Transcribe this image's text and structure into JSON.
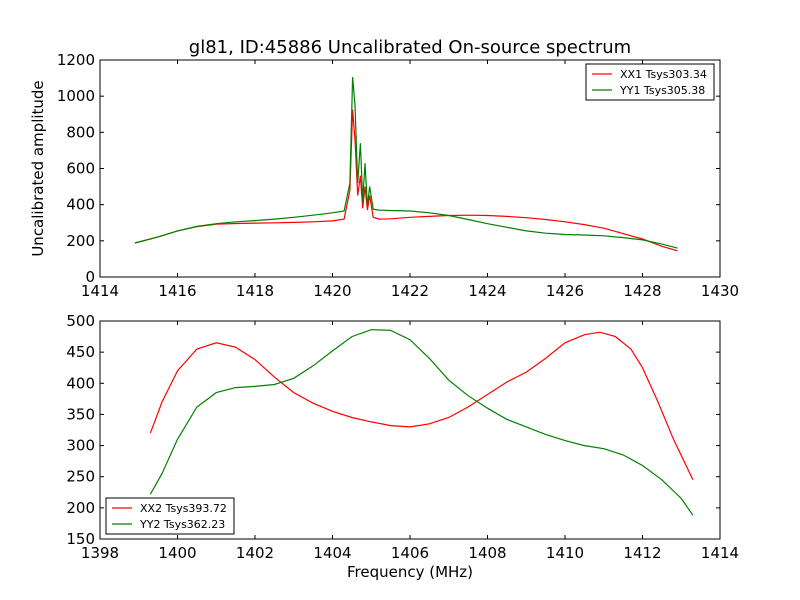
{
  "figure": {
    "title": "gl81, ID:45886 Uncalibrated On-source spectrum"
  },
  "chart_data": [
    {
      "type": "line",
      "ylabel": "Uncalibrated amplitude",
      "xlabel": "",
      "xlim": [
        1414,
        1430
      ],
      "ylim": [
        0,
        1200
      ],
      "xticks": [
        1414,
        1416,
        1418,
        1420,
        1422,
        1424,
        1426,
        1428,
        1430
      ],
      "yticks": [
        0,
        200,
        400,
        600,
        800,
        1000,
        1200
      ],
      "legend": "top-right",
      "series": [
        {
          "name": "XX1 Tsys303.34",
          "color": "#ff0000",
          "x": [
            1414.9,
            1415.5,
            1416.0,
            1416.5,
            1417.0,
            1417.5,
            1418.0,
            1418.5,
            1419.0,
            1419.5,
            1420.0,
            1420.3,
            1420.45,
            1420.52,
            1420.58,
            1420.65,
            1420.72,
            1420.78,
            1420.84,
            1420.9,
            1420.96,
            1421.05,
            1421.2,
            1421.5,
            1422.0,
            1422.5,
            1423.0,
            1423.5,
            1424.0,
            1424.5,
            1425.0,
            1425.5,
            1426.0,
            1426.5,
            1427.0,
            1427.5,
            1428.0,
            1428.5,
            1428.9
          ],
          "values": [
            188,
            222,
            255,
            278,
            292,
            296,
            298,
            300,
            302,
            305,
            310,
            320,
            480,
            925,
            760,
            450,
            560,
            380,
            500,
            370,
            450,
            330,
            320,
            322,
            330,
            335,
            340,
            342,
            340,
            335,
            328,
            318,
            305,
            290,
            270,
            240,
            210,
            170,
            145
          ]
        },
        {
          "name": "YY1 Tsys305.38",
          "color": "#008000",
          "x": [
            1414.9,
            1415.5,
            1416.0,
            1416.5,
            1417.0,
            1417.5,
            1418.0,
            1418.5,
            1419.0,
            1419.5,
            1420.0,
            1420.3,
            1420.45,
            1420.52,
            1420.58,
            1420.65,
            1420.72,
            1420.78,
            1420.84,
            1420.9,
            1420.96,
            1421.05,
            1421.2,
            1421.5,
            1422.0,
            1422.5,
            1423.0,
            1423.5,
            1424.0,
            1424.5,
            1425.0,
            1425.5,
            1426.0,
            1426.5,
            1427.0,
            1427.5,
            1428.0,
            1428.5,
            1428.9
          ],
          "values": [
            188,
            222,
            255,
            280,
            295,
            305,
            312,
            320,
            330,
            342,
            355,
            365,
            520,
            1105,
            950,
            520,
            740,
            420,
            630,
            395,
            500,
            375,
            370,
            368,
            365,
            355,
            340,
            318,
            295,
            275,
            255,
            242,
            235,
            232,
            228,
            218,
            205,
            182,
            160
          ]
        }
      ]
    },
    {
      "type": "line",
      "ylabel": "",
      "xlabel": "Frequency (MHz)",
      "xlim": [
        1398,
        1414
      ],
      "ylim": [
        150,
        500
      ],
      "xticks": [
        1398,
        1400,
        1402,
        1404,
        1406,
        1408,
        1410,
        1412,
        1414
      ],
      "yticks": [
        150,
        200,
        250,
        300,
        350,
        400,
        450,
        500
      ],
      "legend": "bottom-left",
      "series": [
        {
          "name": "XX2 Tsys393.72",
          "color": "#ff0000",
          "x": [
            1399.3,
            1399.6,
            1400.0,
            1400.5,
            1401.0,
            1401.5,
            1402.0,
            1402.5,
            1403.0,
            1403.5,
            1404.0,
            1404.5,
            1405.0,
            1405.5,
            1406.0,
            1406.5,
            1407.0,
            1407.5,
            1408.0,
            1408.5,
            1409.0,
            1409.5,
            1410.0,
            1410.5,
            1410.9,
            1411.3,
            1411.7,
            1412.0,
            1412.4,
            1412.8,
            1413.3
          ],
          "values": [
            320,
            370,
            420,
            455,
            465,
            458,
            438,
            410,
            385,
            368,
            355,
            345,
            338,
            332,
            330,
            335,
            345,
            362,
            382,
            402,
            418,
            440,
            465,
            478,
            482,
            475,
            455,
            425,
            370,
            310,
            245
          ]
        },
        {
          "name": "YY2 Tsys362.23",
          "color": "#008000",
          "x": [
            1399.3,
            1399.6,
            1400.0,
            1400.5,
            1401.0,
            1401.5,
            1402.0,
            1402.5,
            1403.0,
            1403.5,
            1404.0,
            1404.5,
            1405.0,
            1405.5,
            1406.0,
            1406.5,
            1407.0,
            1407.5,
            1408.0,
            1408.5,
            1409.0,
            1409.5,
            1410.0,
            1410.5,
            1411.0,
            1411.5,
            1412.0,
            1412.5,
            1413.0,
            1413.3
          ],
          "values": [
            222,
            255,
            310,
            362,
            385,
            393,
            395,
            398,
            408,
            428,
            452,
            475,
            486,
            485,
            470,
            440,
            405,
            380,
            360,
            342,
            330,
            318,
            308,
            300,
            295,
            285,
            268,
            245,
            215,
            188
          ]
        }
      ]
    }
  ]
}
